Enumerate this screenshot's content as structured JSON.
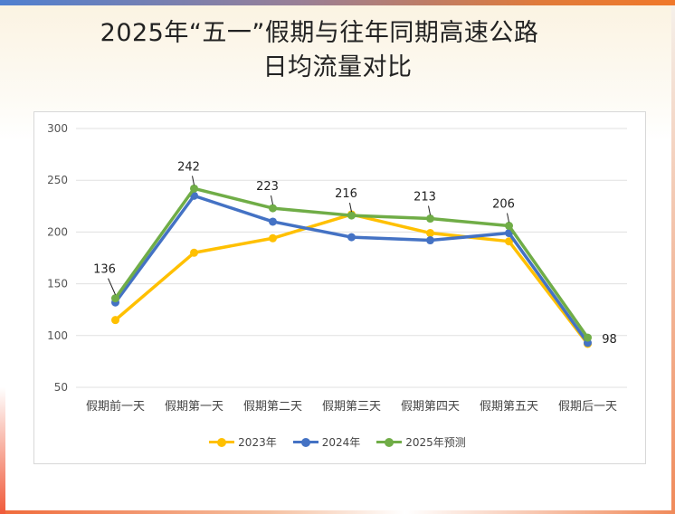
{
  "title_line1": "2025年“五一”假期与往年同期高速公路",
  "title_line2": "日均流量对比",
  "chart_data": {
    "type": "line",
    "title": "2025年“五一”假期与往年同期高速公路日均流量对比",
    "categories": [
      "假期前一天",
      "假期第一天",
      "假期第二天",
      "假期第三天",
      "假期第四天",
      "假期第五天",
      "假期后一天"
    ],
    "ylim": [
      50,
      300
    ],
    "yticks": [
      50,
      100,
      150,
      200,
      250,
      300
    ],
    "grid": true,
    "legend_position": "bottom",
    "series": [
      {
        "name": "2023年",
        "color": "#ffc000",
        "values": [
          115,
          180,
          194,
          217,
          199,
          191,
          92
        ],
        "labels": false
      },
      {
        "name": "2024年",
        "color": "#4472c4",
        "values": [
          132,
          235,
          210,
          195,
          192,
          199,
          93
        ],
        "labels": false
      },
      {
        "name": "2025年预测",
        "color": "#70ad47",
        "values": [
          136,
          242,
          223,
          216,
          213,
          206,
          98
        ],
        "labels": true
      }
    ]
  }
}
